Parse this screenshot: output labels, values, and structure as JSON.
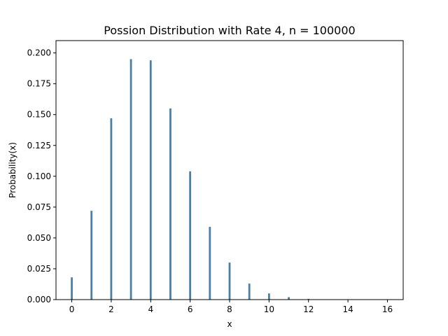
{
  "chart_data": {
    "type": "bar",
    "title": "Possion Distribution with Rate 4, n = 100000",
    "xlabel": "x",
    "ylabel": "Probability(x)",
    "x": [
      0,
      1,
      2,
      3,
      4,
      5,
      6,
      7,
      8,
      9,
      10,
      11,
      12
    ],
    "values": [
      0.018,
      0.072,
      0.147,
      0.195,
      0.194,
      0.155,
      0.104,
      0.059,
      0.03,
      0.013,
      0.005,
      0.002,
      0.0006
    ],
    "xlim": [
      -0.8,
      16.8
    ],
    "ylim": [
      0,
      0.21
    ],
    "xticks": [
      "0",
      "2",
      "4",
      "6",
      "8",
      "10",
      "12",
      "14",
      "16"
    ],
    "yticks": [
      "0.000",
      "0.025",
      "0.050",
      "0.075",
      "0.100",
      "0.125",
      "0.150",
      "0.175",
      "0.200"
    ],
    "bar_color": "#4c7fa6",
    "grid": false,
    "legend": "none"
  }
}
